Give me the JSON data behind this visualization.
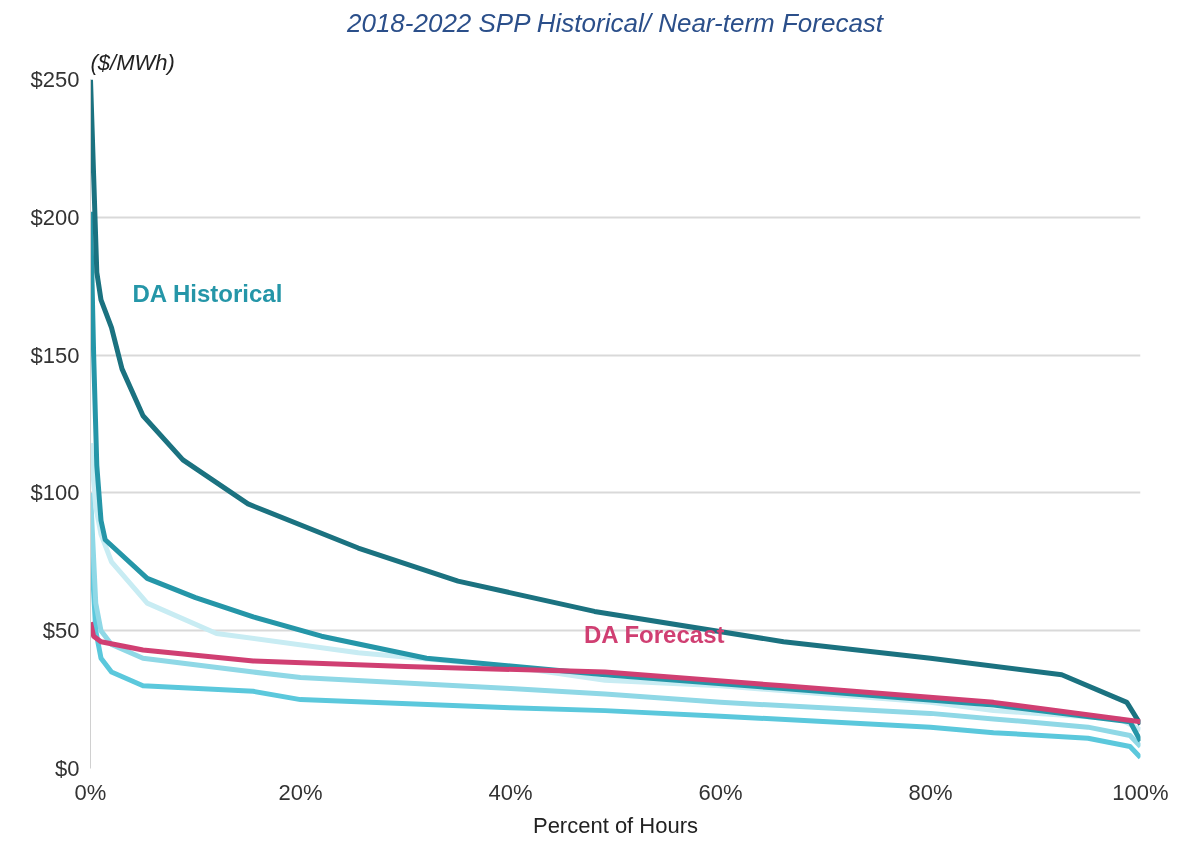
{
  "chart_data": {
    "type": "line",
    "title": "2018-2022 SPP Historical/ Near-term Forecast",
    "xlabel": "Percent of Hours",
    "ylabel": "($/MWh)",
    "xlim": [
      0,
      100
    ],
    "ylim": [
      0,
      250
    ],
    "xticks": [
      {
        "value": 0,
        "label": "0%"
      },
      {
        "value": 20,
        "label": "20%"
      },
      {
        "value": 40,
        "label": "40%"
      },
      {
        "value": 60,
        "label": "60%"
      },
      {
        "value": 80,
        "label": "80%"
      },
      {
        "value": 100,
        "label": "100%"
      }
    ],
    "yticks": [
      {
        "value": 0,
        "label": "$0"
      },
      {
        "value": 50,
        "label": "$50"
      },
      {
        "value": 100,
        "label": "$100"
      },
      {
        "value": 150,
        "label": "$150"
      },
      {
        "value": 200,
        "label": "$200"
      },
      {
        "value": 250,
        "label": "$250"
      }
    ],
    "grid": "y",
    "marker": "none",
    "line_style": "solid",
    "series": [
      {
        "color": "#5bc8dc",
        "x": [
          0,
          0.5,
          1,
          2,
          5,
          15.5,
          20,
          40,
          49,
          60,
          80,
          86,
          95,
          99,
          100
        ],
        "values": [
          85,
          50,
          40,
          35,
          30,
          28,
          25,
          22,
          21,
          19,
          15,
          13,
          11,
          8,
          4
        ]
      },
      {
        "color": "#8fd8e6",
        "x": [
          0,
          0.5,
          1,
          2,
          5,
          15.5,
          20,
          40,
          49,
          60,
          80,
          86,
          95,
          99,
          100
        ],
        "values": [
          100,
          60,
          50,
          45,
          40,
          35,
          33,
          29,
          27,
          24,
          20,
          18,
          15,
          12,
          8
        ]
      },
      {
        "color": "#c8ecf3",
        "x": [
          0,
          0.5,
          1,
          2,
          5.4,
          12,
          25.5,
          40,
          49,
          60,
          80,
          86,
          98,
          100
        ],
        "values": [
          118,
          95,
          85,
          75,
          60,
          49,
          42,
          37,
          32,
          30,
          24,
          21,
          18,
          14
        ]
      },
      {
        "color": "#2596a8",
        "x": [
          0,
          0.3,
          0.6,
          1,
          1.4,
          5.4,
          10,
          15.5,
          22,
          32,
          49,
          66,
          86,
          99,
          100
        ],
        "values": [
          202,
          150,
          110,
          90,
          83,
          69,
          62,
          55,
          48,
          40,
          34,
          29,
          23,
          17,
          10
        ]
      },
      {
        "color": "#1b7280",
        "x": [
          0,
          0.3,
          0.6,
          1,
          2,
          3,
          5,
          8.8,
          15,
          25.5,
          35,
          48,
          66,
          80,
          92.5,
          98.7,
          100
        ],
        "values": [
          250,
          215,
          180,
          170,
          160,
          145,
          128,
          112,
          96,
          80,
          68,
          57,
          46,
          40,
          34,
          24,
          16
        ]
      },
      {
        "color": "#d03f72",
        "x": [
          0,
          0.3,
          1,
          5,
          15.5,
          30,
          49,
          66,
          86,
          100
        ],
        "values": [
          53,
          48,
          46,
          43,
          39,
          37,
          35,
          30,
          24,
          17
        ]
      }
    ],
    "annotations": [
      "DA Historical",
      "DA Forecast"
    ]
  }
}
